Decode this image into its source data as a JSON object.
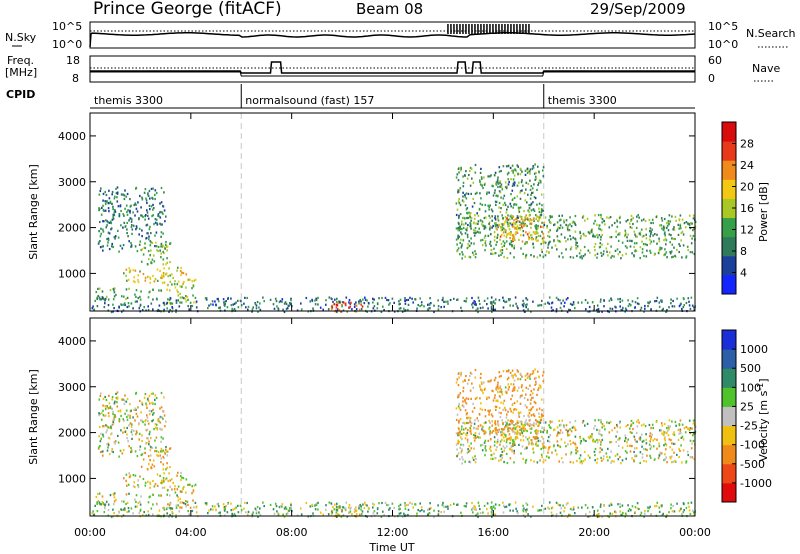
{
  "header": {
    "title": "Prince George (fitACF)",
    "beam": "Beam 08",
    "date": "29/Sep/2009"
  },
  "top_panels": {
    "nsky_label": "N.Sky",
    "nsky_ticks": [
      "10^5",
      "10^0"
    ],
    "nsearch_label": "N.Search",
    "nsearch_ticks": [
      "10^5",
      "10^0"
    ],
    "freq_label_1": "Freq.",
    "freq_label_2": "[MHz]",
    "freq_ticks": [
      "18",
      "8"
    ],
    "nave_label": "Nave",
    "nave_ticks": [
      "60",
      "0"
    ],
    "cpid_label": "CPID"
  },
  "cpid_segments": [
    {
      "label": "themis 3300",
      "start_hour": 0
    },
    {
      "label": "normalsound (fast) 157",
      "start_hour": 6
    },
    {
      "label": "themis 3300",
      "start_hour": 18
    }
  ],
  "axes": {
    "ylabel": "Slant Range [km]",
    "yticks": [
      "1000",
      "2000",
      "3000",
      "4000"
    ],
    "xlabel": "Time UT",
    "xticks": [
      "00:00",
      "04:00",
      "08:00",
      "12:00",
      "16:00",
      "20:00",
      "00:00"
    ]
  },
  "colorbars": {
    "power": {
      "label": "Power [dB]",
      "ticks": [
        "4",
        "8",
        "12",
        "16",
        "20",
        "24",
        "28"
      ],
      "colors": [
        "#1426ff",
        "#1d3f9c",
        "#2e7a5a",
        "#35a048",
        "#aac823",
        "#f2c814",
        "#f08a1a",
        "#e83a1a",
        "#d80c0c"
      ]
    },
    "velocity": {
      "label": "Velocity [m s",
      "label_sup": "-1",
      "label_end": "]",
      "ticks": [
        "1000",
        "500",
        "100",
        "25",
        "-25",
        "-100",
        "-500",
        "-1000"
      ],
      "colors": [
        "#1a2fd8",
        "#2b5fa8",
        "#2f8a68",
        "#4fc22c",
        "#c0c0c0",
        "#f0c010",
        "#f08a1a",
        "#ee4818",
        "#e00c0c"
      ]
    }
  },
  "chart_data": {
    "type": "heatmap",
    "x_range_hours": [
      0,
      24
    ],
    "y_range_km": [
      180,
      4500
    ],
    "grid": false,
    "regions": [
      {
        "t0": 0.3,
        "t1": 3.0,
        "r0": 1500,
        "r1": 2900,
        "power": 9,
        "vel": -10
      },
      {
        "t0": 2.0,
        "t1": 3.2,
        "r0": 1200,
        "r1": 1700,
        "power": 14,
        "vel": -80
      },
      {
        "t0": 1.2,
        "t1": 3.8,
        "r0": 800,
        "r1": 1150,
        "power": 18,
        "vel": -50
      },
      {
        "t0": 0.2,
        "t1": 2.8,
        "r0": 450,
        "r1": 700,
        "power": 12,
        "vel": 0
      },
      {
        "t0": 3.0,
        "t1": 4.2,
        "r0": 350,
        "r1": 900,
        "power": 16,
        "vel": -40
      },
      {
        "t0": 0.0,
        "t1": 24.0,
        "r0": 180,
        "r1": 500,
        "power": 8,
        "vel": 60
      },
      {
        "t0": 9.5,
        "t1": 10.8,
        "r0": 180,
        "r1": 420,
        "power": 26,
        "vel": 10
      },
      {
        "t0": 14.5,
        "t1": 24.0,
        "r0": 1350,
        "r1": 2300,
        "power": 12,
        "vel": -5
      },
      {
        "t0": 14.5,
        "t1": 18.0,
        "r0": 2000,
        "r1": 3400,
        "power": 11,
        "vel": -120
      },
      {
        "t0": 16.0,
        "t1": 18.0,
        "r0": 1700,
        "r1": 2300,
        "power": 20,
        "vel": -60
      }
    ]
  }
}
